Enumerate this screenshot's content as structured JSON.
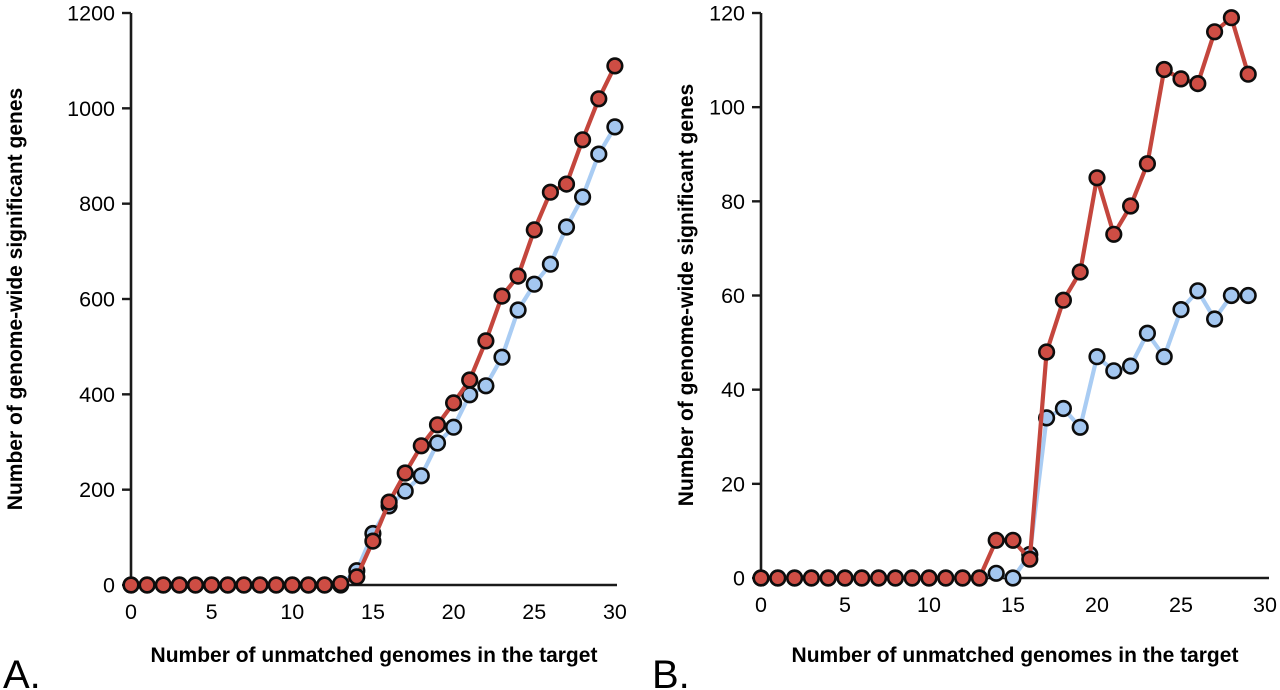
{
  "figure": {
    "background": "#ffffff",
    "panel_count": 2
  },
  "chart_data": [
    {
      "id": "A",
      "panel_label": "A.",
      "type": "line",
      "title": "",
      "xlabel": "Number of unmatched genomes in the target",
      "ylabel": "Number of genome-wide significant genes",
      "xlim": [
        0,
        30
      ],
      "ylim": [
        0,
        1200
      ],
      "xticks": [
        0,
        5,
        10,
        15,
        20,
        25,
        30
      ],
      "yticks": [
        0,
        200,
        400,
        600,
        800,
        1000,
        1200
      ],
      "grid": false,
      "legend": "none",
      "x": [
        0,
        1,
        2,
        3,
        4,
        5,
        6,
        7,
        8,
        9,
        10,
        11,
        12,
        13,
        14,
        15,
        16,
        17,
        18,
        19,
        20,
        21,
        22,
        23,
        24,
        25,
        26,
        27,
        28,
        29,
        30
      ],
      "series": [
        {
          "name": "blue",
          "marker_color": "#A4C7F0",
          "line_color": "#A9CCF3",
          "marker_outline": "#0d0d0d",
          "values": [
            0,
            0,
            0,
            0,
            0,
            0,
            0,
            0,
            0,
            0,
            0,
            0,
            0,
            0,
            30,
            108,
            166,
            197,
            229,
            298,
            331,
            399,
            418,
            478,
            577,
            631,
            673,
            751,
            814,
            904,
            961
          ]
        },
        {
          "name": "red",
          "marker_color": "#CE4D44",
          "line_color": "#C4463D",
          "marker_outline": "#0d0d0d",
          "values": [
            0,
            0,
            0,
            0,
            0,
            0,
            0,
            0,
            0,
            0,
            0,
            0,
            0,
            3,
            17,
            92,
            174,
            235,
            292,
            336,
            382,
            430,
            512,
            606,
            648,
            745,
            824,
            841,
            934,
            1020,
            1089
          ]
        }
      ]
    },
    {
      "id": "B",
      "panel_label": "B.",
      "type": "line",
      "title": "",
      "xlabel": "Number of unmatched genomes in the target",
      "ylabel": "Number of genome-wide significant genes",
      "xlim": [
        0,
        30
      ],
      "ylim": [
        0,
        120
      ],
      "xticks": [
        0,
        5,
        10,
        15,
        20,
        25,
        30
      ],
      "yticks": [
        0,
        20,
        40,
        60,
        80,
        100,
        120
      ],
      "grid": false,
      "legend": "none",
      "x": [
        0,
        1,
        2,
        3,
        4,
        5,
        6,
        7,
        8,
        9,
        10,
        11,
        12,
        13,
        14,
        15,
        16,
        17,
        18,
        19,
        20,
        21,
        22,
        23,
        24,
        25,
        26,
        27,
        28,
        29
      ],
      "series": [
        {
          "name": "blue",
          "marker_color": "#A4C7F0",
          "line_color": "#A9CCF3",
          "marker_outline": "#0d0d0d",
          "values": [
            0,
            0,
            0,
            0,
            0,
            0,
            0,
            0,
            0,
            0,
            0,
            0,
            0,
            0,
            1,
            0,
            5,
            34,
            36,
            32,
            47,
            44,
            45,
            52,
            47,
            57,
            61,
            55,
            60,
            60
          ]
        },
        {
          "name": "red",
          "marker_color": "#CE4D44",
          "line_color": "#C4463D",
          "marker_outline": "#0d0d0d",
          "values": [
            0,
            0,
            0,
            0,
            0,
            0,
            0,
            0,
            0,
            0,
            0,
            0,
            0,
            0,
            8,
            8,
            4,
            48,
            59,
            65,
            85,
            73,
            79,
            88,
            108,
            106,
            105,
            116,
            119,
            107
          ]
        }
      ]
    }
  ]
}
